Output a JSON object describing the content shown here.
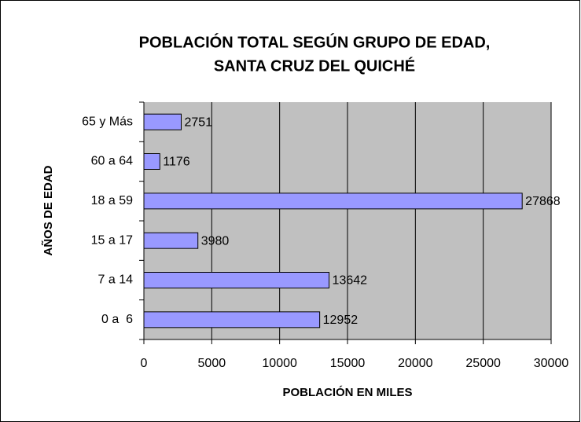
{
  "chart_data": {
    "type": "bar",
    "orientation": "horizontal",
    "title": [
      "POBLACIÓN TOTAL SEGÚN GRUPO DE EDAD,",
      "SANTA CRUZ DEL QUICHÉ"
    ],
    "x_label": "POBLACIÓN EN MILES",
    "y_label": "AÑOS DE EDAD",
    "categories": [
      "65 y Más",
      "60 a 64",
      "18 a 59",
      "15 a 17",
      "7 a 14",
      "0 a  6"
    ],
    "values": [
      2751,
      1176,
      27868,
      3980,
      13642,
      12952
    ],
    "color": "#9999ff",
    "plot_background": "#c0c0c0",
    "xlim": [
      0,
      30000
    ],
    "xticks": [
      0,
      5000,
      10000,
      15000,
      20000,
      25000,
      30000
    ],
    "grid": true
  }
}
